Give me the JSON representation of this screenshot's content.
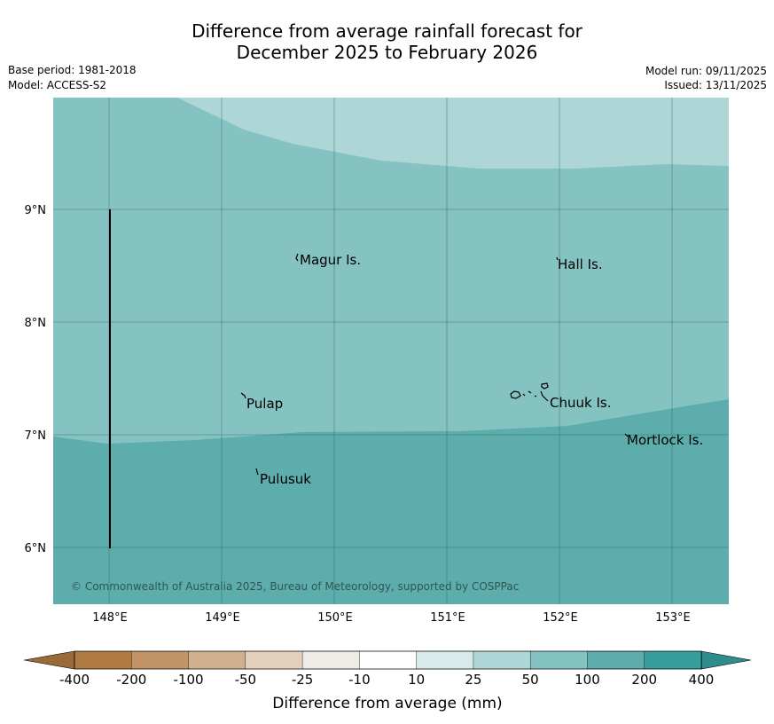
{
  "title_line1": "Difference from average rainfall forecast for",
  "title_line2": "December 2025 to February 2026",
  "meta": {
    "base_period": "Base period: 1981-2018",
    "model": "Model: ACCESS-S2",
    "model_run": "Model run: 09/11/2025",
    "issued": "Issued: 13/11/2025"
  },
  "map": {
    "lat_labels": [
      "9°N",
      "8°N",
      "7°N",
      "6°N"
    ],
    "lon_labels": [
      "148°E",
      "149°E",
      "150°E",
      "151°E",
      "152°E",
      "153°E"
    ],
    "places": [
      {
        "name": "Magur Is."
      },
      {
        "name": "Hall Is."
      },
      {
        "name": "Pulap"
      },
      {
        "name": "Chuuk Is."
      },
      {
        "name": "Mortlock Is."
      },
      {
        "name": "Pulusuk"
      }
    ],
    "copyright": "© Commonwealth of Australia 2025, Bureau of Meteorology, supported by COSPPac",
    "zone_colors": {
      "zone_25_50": "#aed6d6",
      "zone_50_100": "#85c3c2",
      "zone_100_200": "#5cadac"
    }
  },
  "legend": {
    "title": "Difference from average (mm)",
    "tick_labels": [
      "-400",
      "-200",
      "-100",
      "-50",
      "-25",
      "-10",
      "10",
      "25",
      "50",
      "100",
      "200",
      "400"
    ],
    "colors": [
      "#b07a43",
      "#c19367",
      "#d2b190",
      "#e4d0bd",
      "#efece8",
      "#ffffff",
      "#d8ebea",
      "#aed6d6",
      "#85c3c2",
      "#5cadac",
      "#379e9c"
    ],
    "low_extend_color": "#9b6a38",
    "high_extend_color": "#2e8c8a"
  }
}
